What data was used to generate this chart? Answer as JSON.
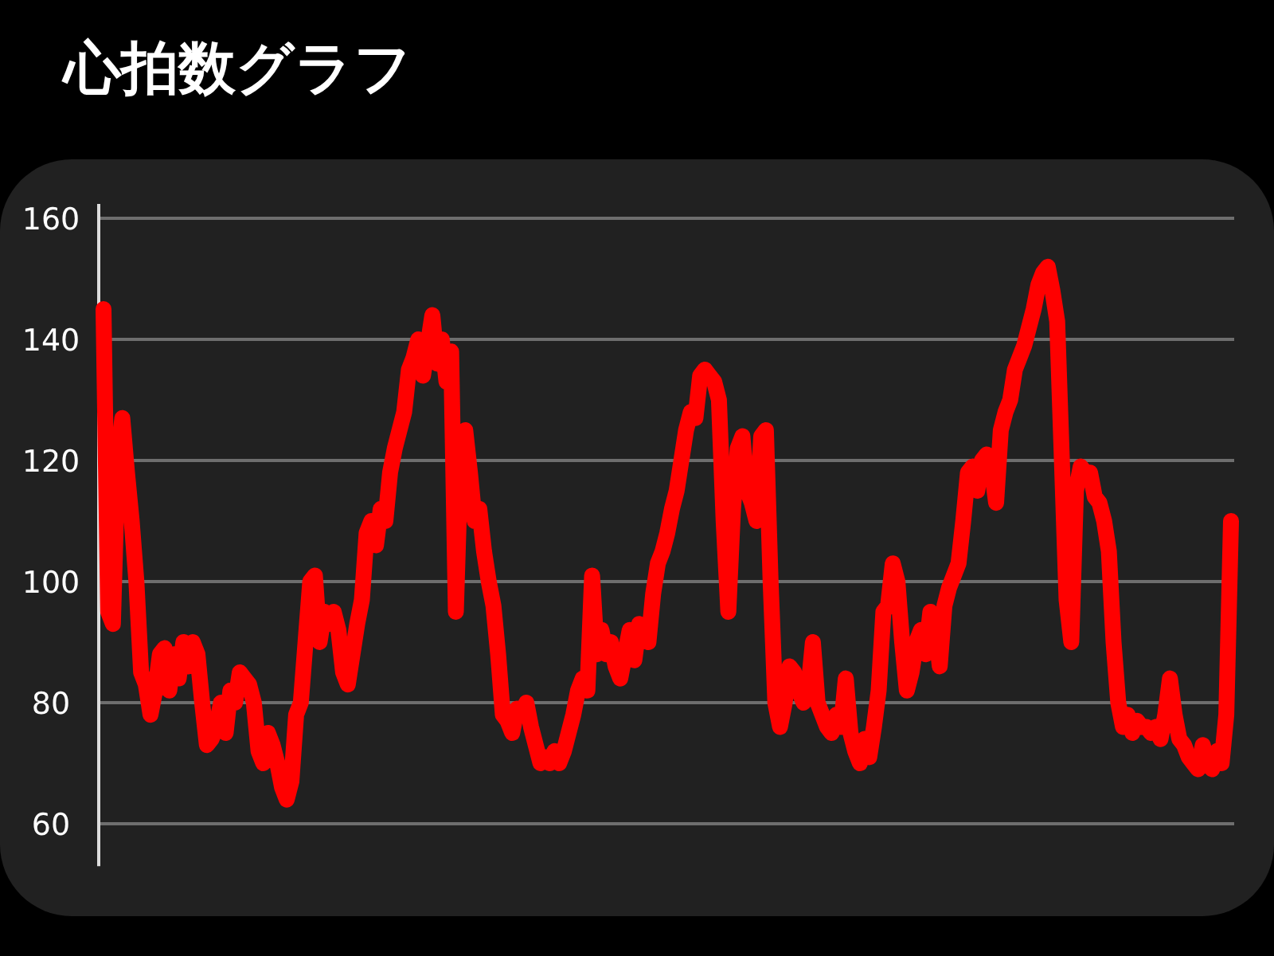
{
  "chart_data": {
    "type": "line",
    "title": "心拍数グラフ",
    "categories": [
      null,
      null,
      null,
      null,
      null,
      null,
      null,
      null,
      null,
      null,
      null,
      null,
      null,
      null,
      null,
      null,
      null,
      null,
      null,
      null,
      null,
      null,
      null,
      null,
      null,
      null,
      null,
      null,
      null,
      null,
      null,
      null,
      null,
      null,
      null,
      null,
      null,
      null,
      null,
      null,
      null,
      null,
      null,
      null,
      null,
      null,
      null,
      null,
      null,
      null,
      null,
      null,
      null,
      null,
      null,
      null,
      null,
      null,
      null,
      null,
      null,
      null,
      null,
      null,
      null,
      null,
      null,
      null,
      null,
      null,
      null,
      null,
      null,
      null,
      null,
      null,
      null,
      null,
      null,
      null,
      null,
      null,
      null,
      null,
      null,
      null,
      null,
      null,
      null,
      null,
      null,
      null,
      null,
      null,
      null,
      null,
      null,
      null,
      null,
      null,
      null,
      null,
      null,
      null,
      null,
      null,
      null,
      null,
      null,
      null,
      null,
      null,
      null,
      null,
      null,
      null,
      null,
      null,
      null,
      null,
      null,
      null,
      null,
      null,
      null,
      null,
      null,
      null,
      null,
      null,
      null,
      null,
      null,
      null,
      null,
      null,
      null,
      null,
      null,
      null,
      null,
      null,
      null,
      null,
      null,
      null,
      null,
      null,
      null,
      null,
      null,
      null,
      null,
      null,
      null,
      null,
      null,
      null,
      null,
      null,
      null,
      null,
      null,
      null,
      null,
      null,
      null,
      null,
      null,
      null,
      null,
      null,
      null,
      null,
      null,
      null,
      null,
      null,
      null,
      null,
      null,
      null,
      null,
      null,
      null,
      null,
      null,
      null,
      null,
      null,
      null,
      null,
      null,
      null,
      null,
      null,
      null,
      null,
      null,
      null,
      null,
      null,
      null,
      null,
      null,
      null,
      null,
      null,
      null,
      null,
      null,
      null,
      null,
      null,
      null,
      null,
      null,
      null,
      null,
      null,
      null,
      null,
      null,
      null,
      null,
      null,
      null,
      null,
      null,
      null,
      null,
      null,
      null,
      null,
      null,
      null,
      null,
      null,
      null,
      null,
      null
    ],
    "series": [
      {
        "color": "#ff0000",
        "values": [
          145,
          95,
          93,
          120,
          127,
          118,
          110,
          100,
          85,
          83,
          78,
          82,
          88,
          89,
          82,
          88,
          84,
          90,
          86,
          90,
          88,
          80,
          73,
          74,
          76,
          80,
          75,
          82,
          80,
          85,
          84,
          83,
          80,
          72,
          70,
          75,
          73,
          70,
          66,
          64,
          67,
          78,
          80,
          90,
          100,
          101,
          90,
          95,
          93,
          95,
          92,
          85,
          83,
          88,
          93,
          97,
          108,
          110,
          106,
          112,
          110,
          118,
          122,
          125,
          128,
          135,
          137,
          140,
          134,
          139,
          144,
          136,
          140,
          133,
          138,
          95,
          120,
          125,
          118,
          110,
          112,
          105,
          100,
          96,
          88,
          78,
          77,
          75,
          79,
          78,
          80,
          76,
          73,
          70,
          71,
          70,
          72,
          70,
          72,
          75,
          78,
          82,
          84,
          82,
          101,
          88,
          92,
          88,
          90,
          86,
          84,
          88,
          92,
          87,
          93,
          92,
          90,
          98,
          103,
          105,
          108,
          112,
          115,
          120,
          125,
          128,
          127,
          134,
          135,
          134,
          133,
          130,
          110,
          95,
          112,
          122,
          124,
          115,
          113,
          110,
          124,
          125,
          100,
          80,
          76,
          80,
          86,
          85,
          82,
          80,
          82,
          90,
          80,
          78,
          76,
          75,
          78,
          76,
          84,
          75,
          72,
          70,
          74,
          71,
          76,
          82,
          95,
          96,
          103,
          100,
          90,
          82,
          85,
          90,
          92,
          88,
          95,
          93,
          86,
          96,
          99,
          101,
          103,
          110,
          118,
          119,
          115,
          120,
          121,
          119,
          113,
          125,
          128,
          130,
          135,
          137,
          139,
          142,
          145,
          149,
          151,
          152,
          148,
          143,
          120,
          97,
          90,
          115,
          119,
          118,
          118,
          114,
          113,
          110,
          105,
          90,
          80,
          76,
          78,
          75,
          77,
          76,
          76,
          75,
          76,
          74,
          78,
          84,
          78,
          74,
          73,
          71,
          70,
          69,
          73,
          70,
          69,
          72,
          70,
          78,
          110
        ]
      }
    ],
    "ylim": [
      53,
      160
    ],
    "yticks": [
      60,
      80,
      100,
      120,
      140,
      160
    ],
    "grid": "y",
    "line_style": "solid",
    "marker": "none"
  }
}
